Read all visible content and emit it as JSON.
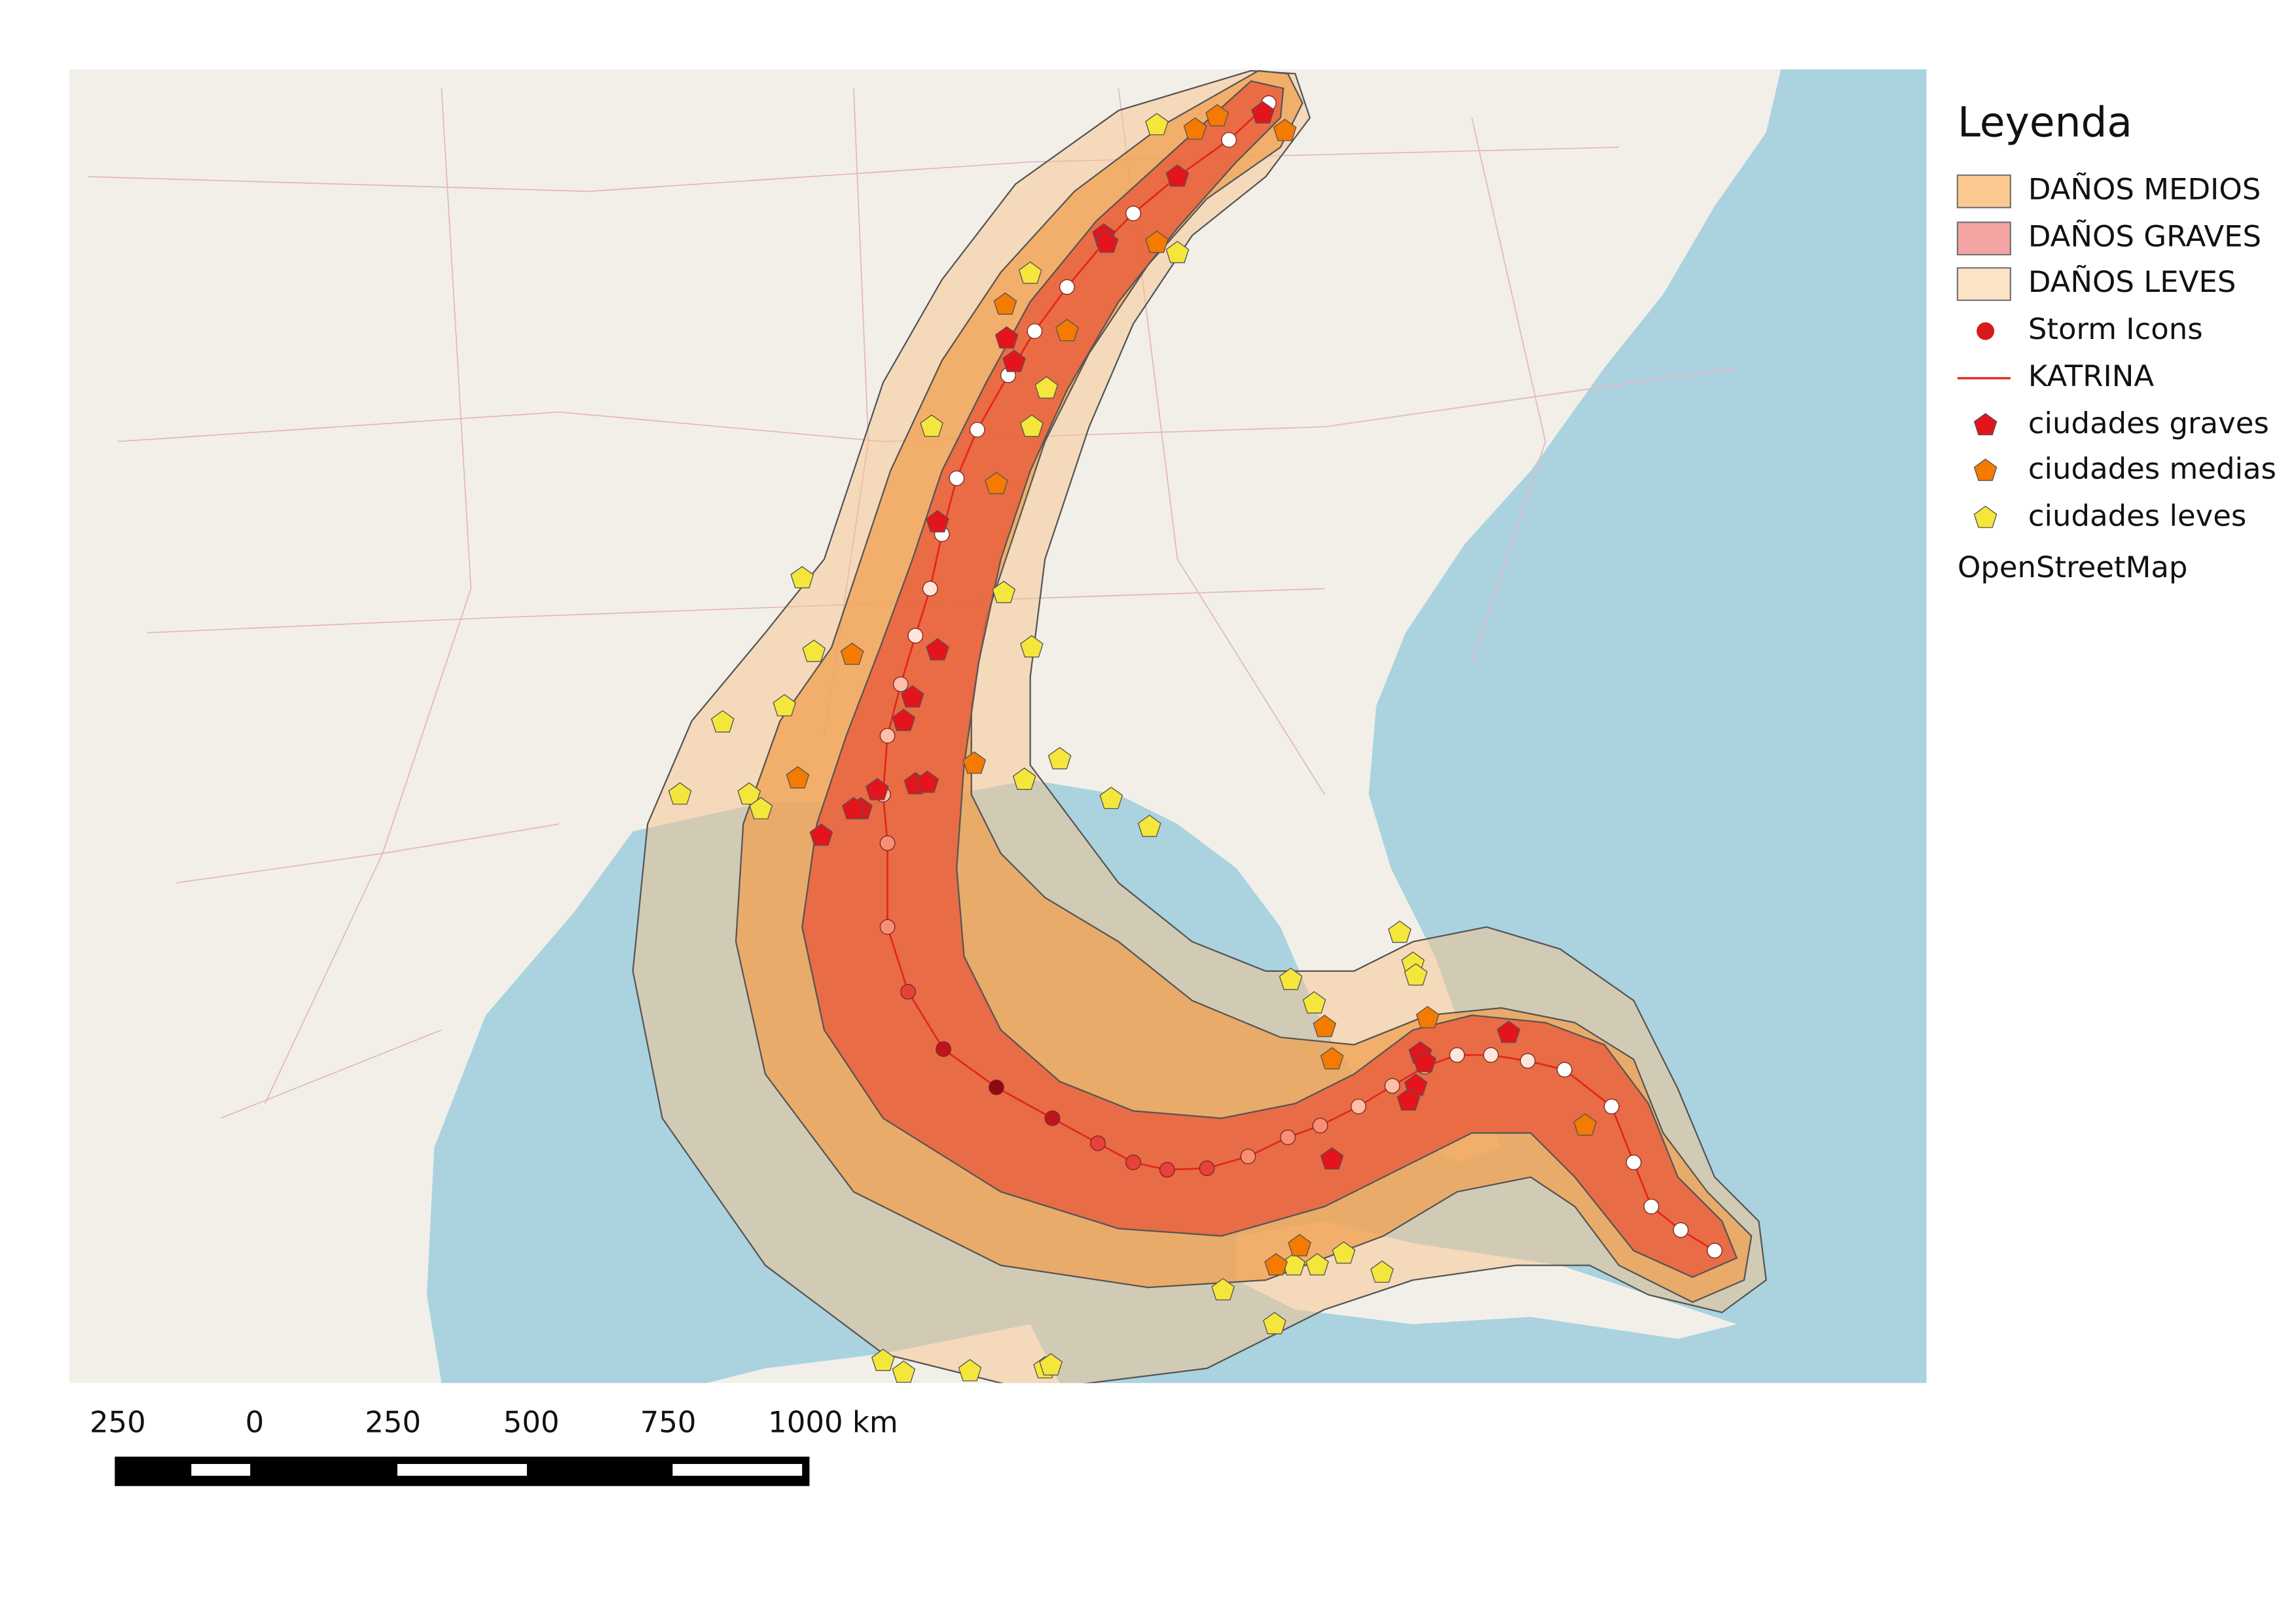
{
  "legend": {
    "title": "Leyenda",
    "items": [
      "DAÑOS MEDIOS",
      "DAÑOS GRAVES",
      "DAÑOS LEVES",
      "Storm Icons",
      "KATRINA",
      "ciudades graves",
      "ciudades medias",
      "ciudades leves"
    ],
    "basemap": "OpenStreetMap"
  },
  "scale_bar": {
    "labels": [
      "250",
      "0",
      "250",
      "500",
      "750",
      "1000 km"
    ]
  }
}
